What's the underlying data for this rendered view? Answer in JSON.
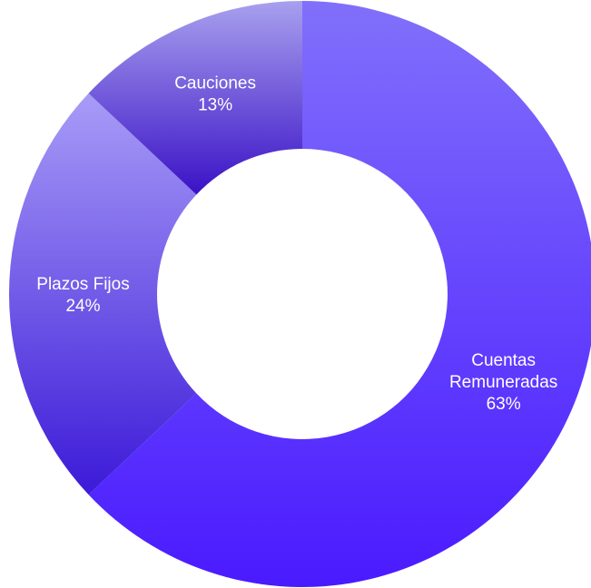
{
  "chart_data": {
    "type": "pie",
    "variant": "donut",
    "title": "",
    "categories": [
      "Cuentas Remuneradas",
      "Plazos Fijos",
      "Cauciones"
    ],
    "values": [
      63,
      24,
      13
    ],
    "value_labels": [
      "63%",
      "24%",
      "13%"
    ],
    "label_lines": [
      [
        "Cuentas",
        "Remuneradas"
      ],
      [
        "Plazos Fijos"
      ],
      [
        "Cauciones"
      ]
    ],
    "start_angle_deg": 0,
    "direction": "clockwise",
    "legend": "none",
    "colors": [
      {
        "light": "#8170fb",
        "dark": "#4a1aff"
      },
      {
        "light": "#a89cf7",
        "dark": "#3c1ad8"
      },
      {
        "light": "#a8a0ee",
        "dark": "#3a12c6"
      }
    ],
    "label_color": "#ffffff",
    "background": "#ffffff"
  }
}
